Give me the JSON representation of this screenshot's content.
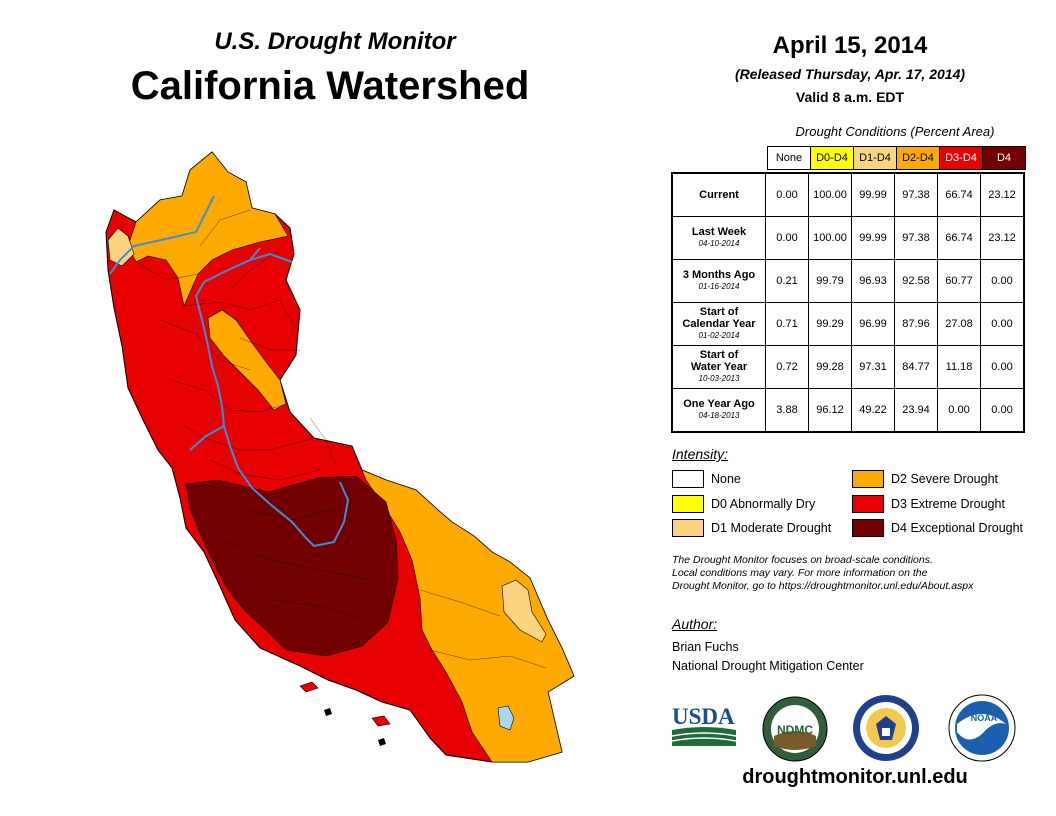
{
  "header": {
    "subtitle": "U.S. Drought Monitor",
    "title": "California Watershed"
  },
  "date": {
    "map_date": "April 15, 2014",
    "released": "(Released Thursday, Apr. 17, 2014)",
    "valid": "Valid 8 a.m. EDT"
  },
  "table": {
    "title": "Drought Conditions (Percent Area)",
    "columns": [
      {
        "label": "None",
        "color": "#ffffff",
        "text": "#000000"
      },
      {
        "label": "D0-D4",
        "color": "#ffff00",
        "text": "#000000"
      },
      {
        "label": "D1-D4",
        "color": "#fcd37f",
        "text": "#000000"
      },
      {
        "label": "D2-D4",
        "color": "#ffaa00",
        "text": "#000000"
      },
      {
        "label": "D3-D4",
        "color": "#e60000",
        "text": "#ffffff"
      },
      {
        "label": "D4",
        "color": "#730000",
        "text": "#ffffff"
      }
    ],
    "rows": [
      {
        "label": [
          "Current"
        ],
        "date": "",
        "values": [
          "0.00",
          "100.00",
          "99.99",
          "97.38",
          "66.74",
          "23.12"
        ]
      },
      {
        "label": [
          "Last Week"
        ],
        "date": "04-10-2014",
        "values": [
          "0.00",
          "100.00",
          "99.99",
          "97.38",
          "66.74",
          "23.12"
        ]
      },
      {
        "label": [
          "3 Months Ago"
        ],
        "date": "01-16-2014",
        "values": [
          "0.21",
          "99.79",
          "96.93",
          "92.58",
          "60.77",
          "0.00"
        ]
      },
      {
        "label": [
          "Start of",
          "Calendar Year"
        ],
        "date": "01-02-2014",
        "values": [
          "0.71",
          "99.29",
          "96.99",
          "87.96",
          "27.08",
          "0.00"
        ]
      },
      {
        "label": [
          "Start of",
          "Water Year"
        ],
        "date": "10-03-2013",
        "values": [
          "0.72",
          "99.28",
          "97.31",
          "84.77",
          "11.18",
          "0.00"
        ]
      },
      {
        "label": [
          "One Year Ago"
        ],
        "date": "04-18-2013",
        "values": [
          "3.88",
          "96.12",
          "49.22",
          "23.94",
          "0.00",
          "0.00"
        ]
      }
    ]
  },
  "legend": {
    "title": "Intensity:",
    "items": [
      {
        "label": "None",
        "color": "#ffffff"
      },
      {
        "label": "D0 Abnormally Dry",
        "color": "#ffff00"
      },
      {
        "label": "D1 Moderate Drought",
        "color": "#fcd37f"
      },
      {
        "label": "D2 Severe Drought",
        "color": "#ffaa00"
      },
      {
        "label": "D3 Extreme Drought",
        "color": "#e60000"
      },
      {
        "label": "D4 Exceptional Drought",
        "color": "#730000"
      }
    ]
  },
  "note": {
    "line1": "The Drought Monitor focuses on broad-scale conditions.",
    "line2": "Local conditions may vary. For more information on the",
    "line3": "Drought Monitor, go to https://droughtmonitor.unl.edu/About.aspx"
  },
  "author": {
    "heading": "Author:",
    "name": "Brian Fuchs",
    "org": "National Drought Mitigation Center"
  },
  "logos": {
    "usda": "USDA",
    "ndmc": "NDMC",
    "noaa": "NOAA"
  },
  "footer": {
    "url": "droughtmonitor.unl.edu"
  },
  "colors": {
    "none": "#ffffff",
    "d0": "#ffff00",
    "d1": "#fcd37f",
    "d2": "#ffaa00",
    "d3": "#e60000",
    "d4": "#730000",
    "river": "#3c8fd6"
  }
}
